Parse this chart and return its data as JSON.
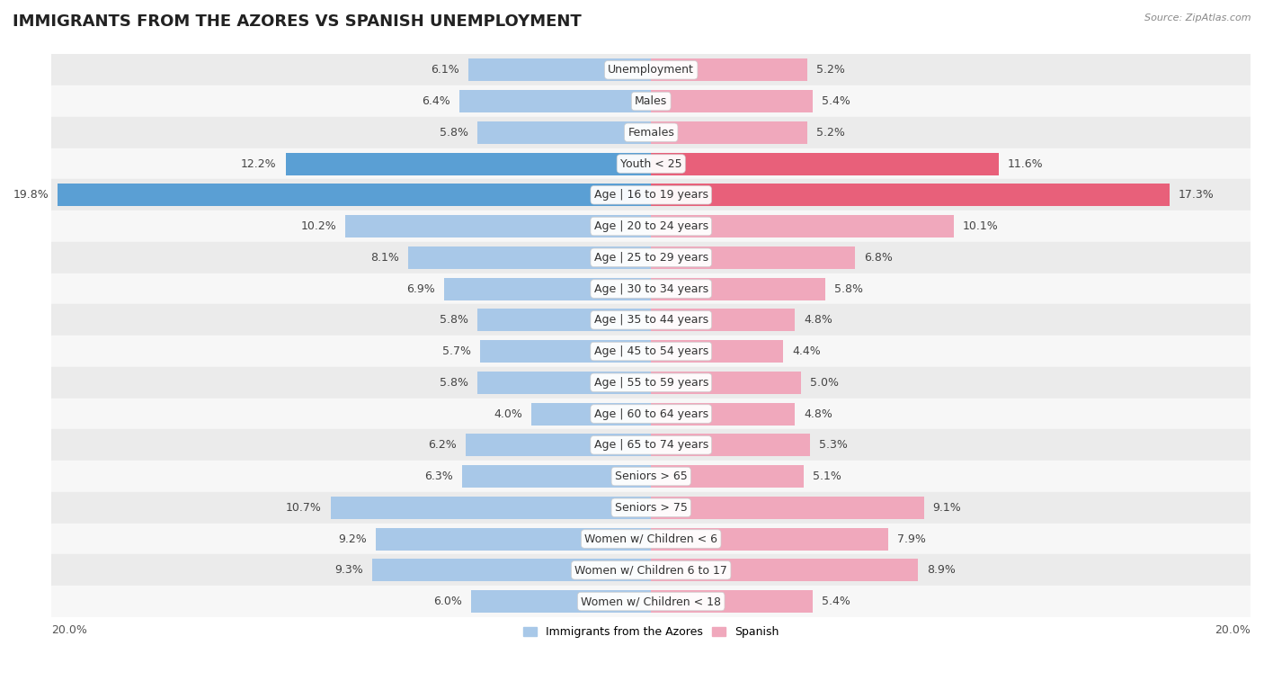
{
  "title": "IMMIGRANTS FROM THE AZORES VS SPANISH UNEMPLOYMENT",
  "source": "Source: ZipAtlas.com",
  "categories": [
    "Unemployment",
    "Males",
    "Females",
    "Youth < 25",
    "Age | 16 to 19 years",
    "Age | 20 to 24 years",
    "Age | 25 to 29 years",
    "Age | 30 to 34 years",
    "Age | 35 to 44 years",
    "Age | 45 to 54 years",
    "Age | 55 to 59 years",
    "Age | 60 to 64 years",
    "Age | 65 to 74 years",
    "Seniors > 65",
    "Seniors > 75",
    "Women w/ Children < 6",
    "Women w/ Children 6 to 17",
    "Women w/ Children < 18"
  ],
  "azores_values": [
    6.1,
    6.4,
    5.8,
    12.2,
    19.8,
    10.2,
    8.1,
    6.9,
    5.8,
    5.7,
    5.8,
    4.0,
    6.2,
    6.3,
    10.7,
    9.2,
    9.3,
    6.0
  ],
  "spanish_values": [
    5.2,
    5.4,
    5.2,
    11.6,
    17.3,
    10.1,
    6.8,
    5.8,
    4.8,
    4.4,
    5.0,
    4.8,
    5.3,
    5.1,
    9.1,
    7.9,
    8.9,
    5.4
  ],
  "azores_color": "#a8c8e8",
  "spanish_color": "#f0a8bc",
  "azores_highlight_color": "#5a9fd4",
  "spanish_highlight_color": "#e8607a",
  "highlight_rows": [
    3,
    4
  ],
  "xlim": 20.0,
  "legend_label_azores": "Immigrants from the Azores",
  "legend_label_spanish": "Spanish",
  "bar_height": 0.72,
  "row_bg_even": "#ebebeb",
  "row_bg_odd": "#f7f7f7",
  "title_fontsize": 13,
  "label_fontsize": 9,
  "category_fontsize": 9
}
